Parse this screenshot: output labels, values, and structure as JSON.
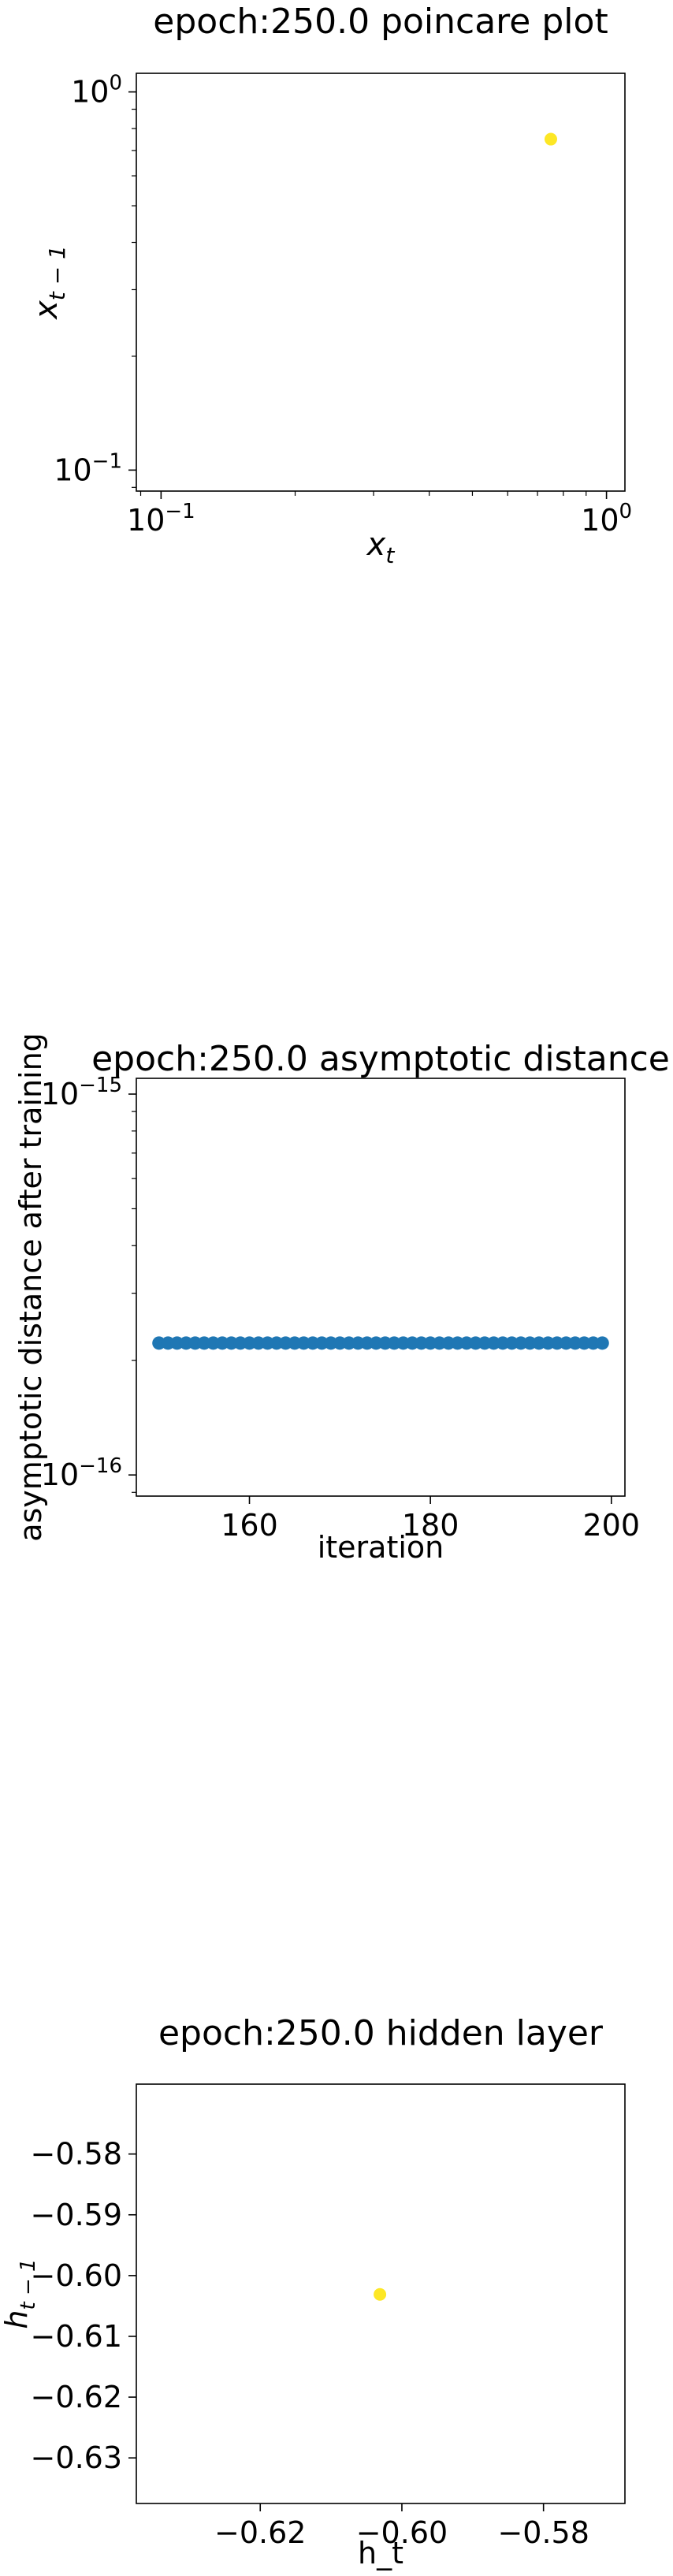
{
  "chart_data": [
    {
      "type": "scatter",
      "title": "epoch:250.0 poincare plot",
      "xlabel": "x",
      "xlabel_sub": "t",
      "ylabel": "x",
      "ylabel_sub": "t − 1",
      "xscale": "log",
      "yscale": "log",
      "xlim": [
        0.088,
        1.1
      ],
      "ylim": [
        0.088,
        1.12
      ],
      "xticks": [
        {
          "base": "10",
          "exp": "−1",
          "value": 0.1
        },
        {
          "base": "10",
          "exp": "0",
          "value": 1.0
        }
      ],
      "yticks": [
        {
          "base": "10",
          "exp": "−1",
          "value": 0.1
        },
        {
          "base": "10",
          "exp": "0",
          "value": 1.0
        }
      ],
      "grid": false,
      "points": [
        {
          "x": 0.75,
          "y": 0.75
        }
      ],
      "color": "#fde725"
    },
    {
      "type": "scatter",
      "title": "epoch:250.0 asymptotic distance",
      "xlabel": "iteration",
      "ylabel": "asymptotic distance after training",
      "yscale": "log",
      "xlim": [
        147.5,
        201.5
      ],
      "ylim": [
        8.8e-17,
        1.1e-15
      ],
      "xticks": [
        {
          "label": "160",
          "value": 160
        },
        {
          "label": "180",
          "value": 180
        },
        {
          "label": "200",
          "value": 200
        }
      ],
      "yticks": [
        {
          "base": "10",
          "exp": "−16",
          "value": 1e-16
        },
        {
          "base": "10",
          "exp": "−15",
          "value": 1e-15
        }
      ],
      "grid": false,
      "x_range": [
        150,
        199
      ],
      "y_value": 2.22e-16,
      "color": "#1f77b4"
    },
    {
      "type": "scatter",
      "title": "epoch:250.0 hidden layer",
      "xlabel": "h_t",
      "ylabel": "h",
      "ylabel_sub": "t − 1",
      "xlim": [
        -0.6375,
        -0.5685
      ],
      "ylim": [
        -0.6375,
        -0.5685
      ],
      "xticks": [
        {
          "label": "−0.62",
          "value": -0.62
        },
        {
          "label": "−0.60",
          "value": -0.6
        },
        {
          "label": "−0.58",
          "value": -0.58
        }
      ],
      "yticks": [
        {
          "label": "−0.63",
          "value": -0.63
        },
        {
          "label": "−0.62",
          "value": -0.62
        },
        {
          "label": "−0.61",
          "value": -0.61
        },
        {
          "label": "−0.60",
          "value": -0.6
        },
        {
          "label": "−0.59",
          "value": -0.59
        },
        {
          "label": "−0.58",
          "value": -0.58
        }
      ],
      "grid": false,
      "points": [
        {
          "x": -0.6031,
          "y": -0.6031
        }
      ],
      "color": "#fde725"
    }
  ]
}
